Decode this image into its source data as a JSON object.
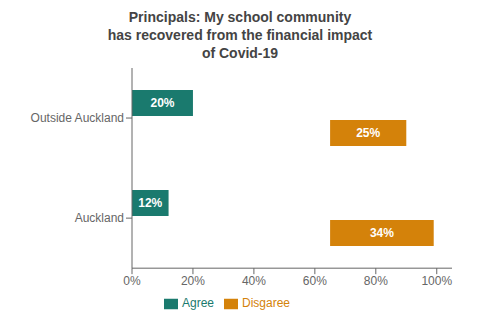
{
  "chart_data": {
    "type": "bar",
    "orientation": "horizontal",
    "title": "Principals: My school community\nhas recovered from the financial impact\nof Covid-19",
    "categories": [
      "Outside Auckland",
      "Auckland"
    ],
    "series": [
      {
        "name": "Agree",
        "color": "#1a7a6e",
        "start": 0,
        "values": [
          20,
          12
        ],
        "value_labels": [
          "20%",
          "12%"
        ]
      },
      {
        "name": "Disgaree",
        "color": "#d4820a",
        "start": 65,
        "values": [
          25,
          34
        ],
        "value_labels": [
          "25%",
          "34%"
        ]
      }
    ],
    "xlim": [
      0,
      105
    ],
    "xticks": [
      {
        "value": 0,
        "label": "0%"
      },
      {
        "value": 20,
        "label": "20%"
      },
      {
        "value": 40,
        "label": "40%"
      },
      {
        "value": 60,
        "label": "60%"
      },
      {
        "value": 80,
        "label": "80%"
      },
      {
        "value": 100,
        "label": "100%"
      }
    ],
    "grid": false,
    "legend": "bottom"
  }
}
